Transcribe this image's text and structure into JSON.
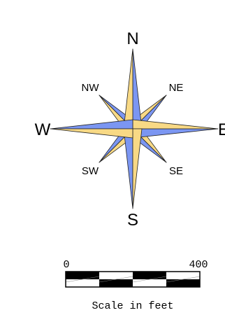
{
  "compass": {
    "labels": {
      "N": "N",
      "S": "S",
      "E": "E",
      "W": "W",
      "NE": "NE",
      "NW": "NW",
      "SE": "SE",
      "SW": "SW"
    },
    "colors": {
      "blue": "#7b96f2",
      "yellow": "#f8d985",
      "outline": "#222222"
    }
  },
  "scale_bar": {
    "start_label": "0",
    "end_label": "400",
    "caption": "Scale in feet",
    "segments": 4,
    "colors": {
      "fill": "#000000",
      "empty": "#ffffff"
    }
  }
}
